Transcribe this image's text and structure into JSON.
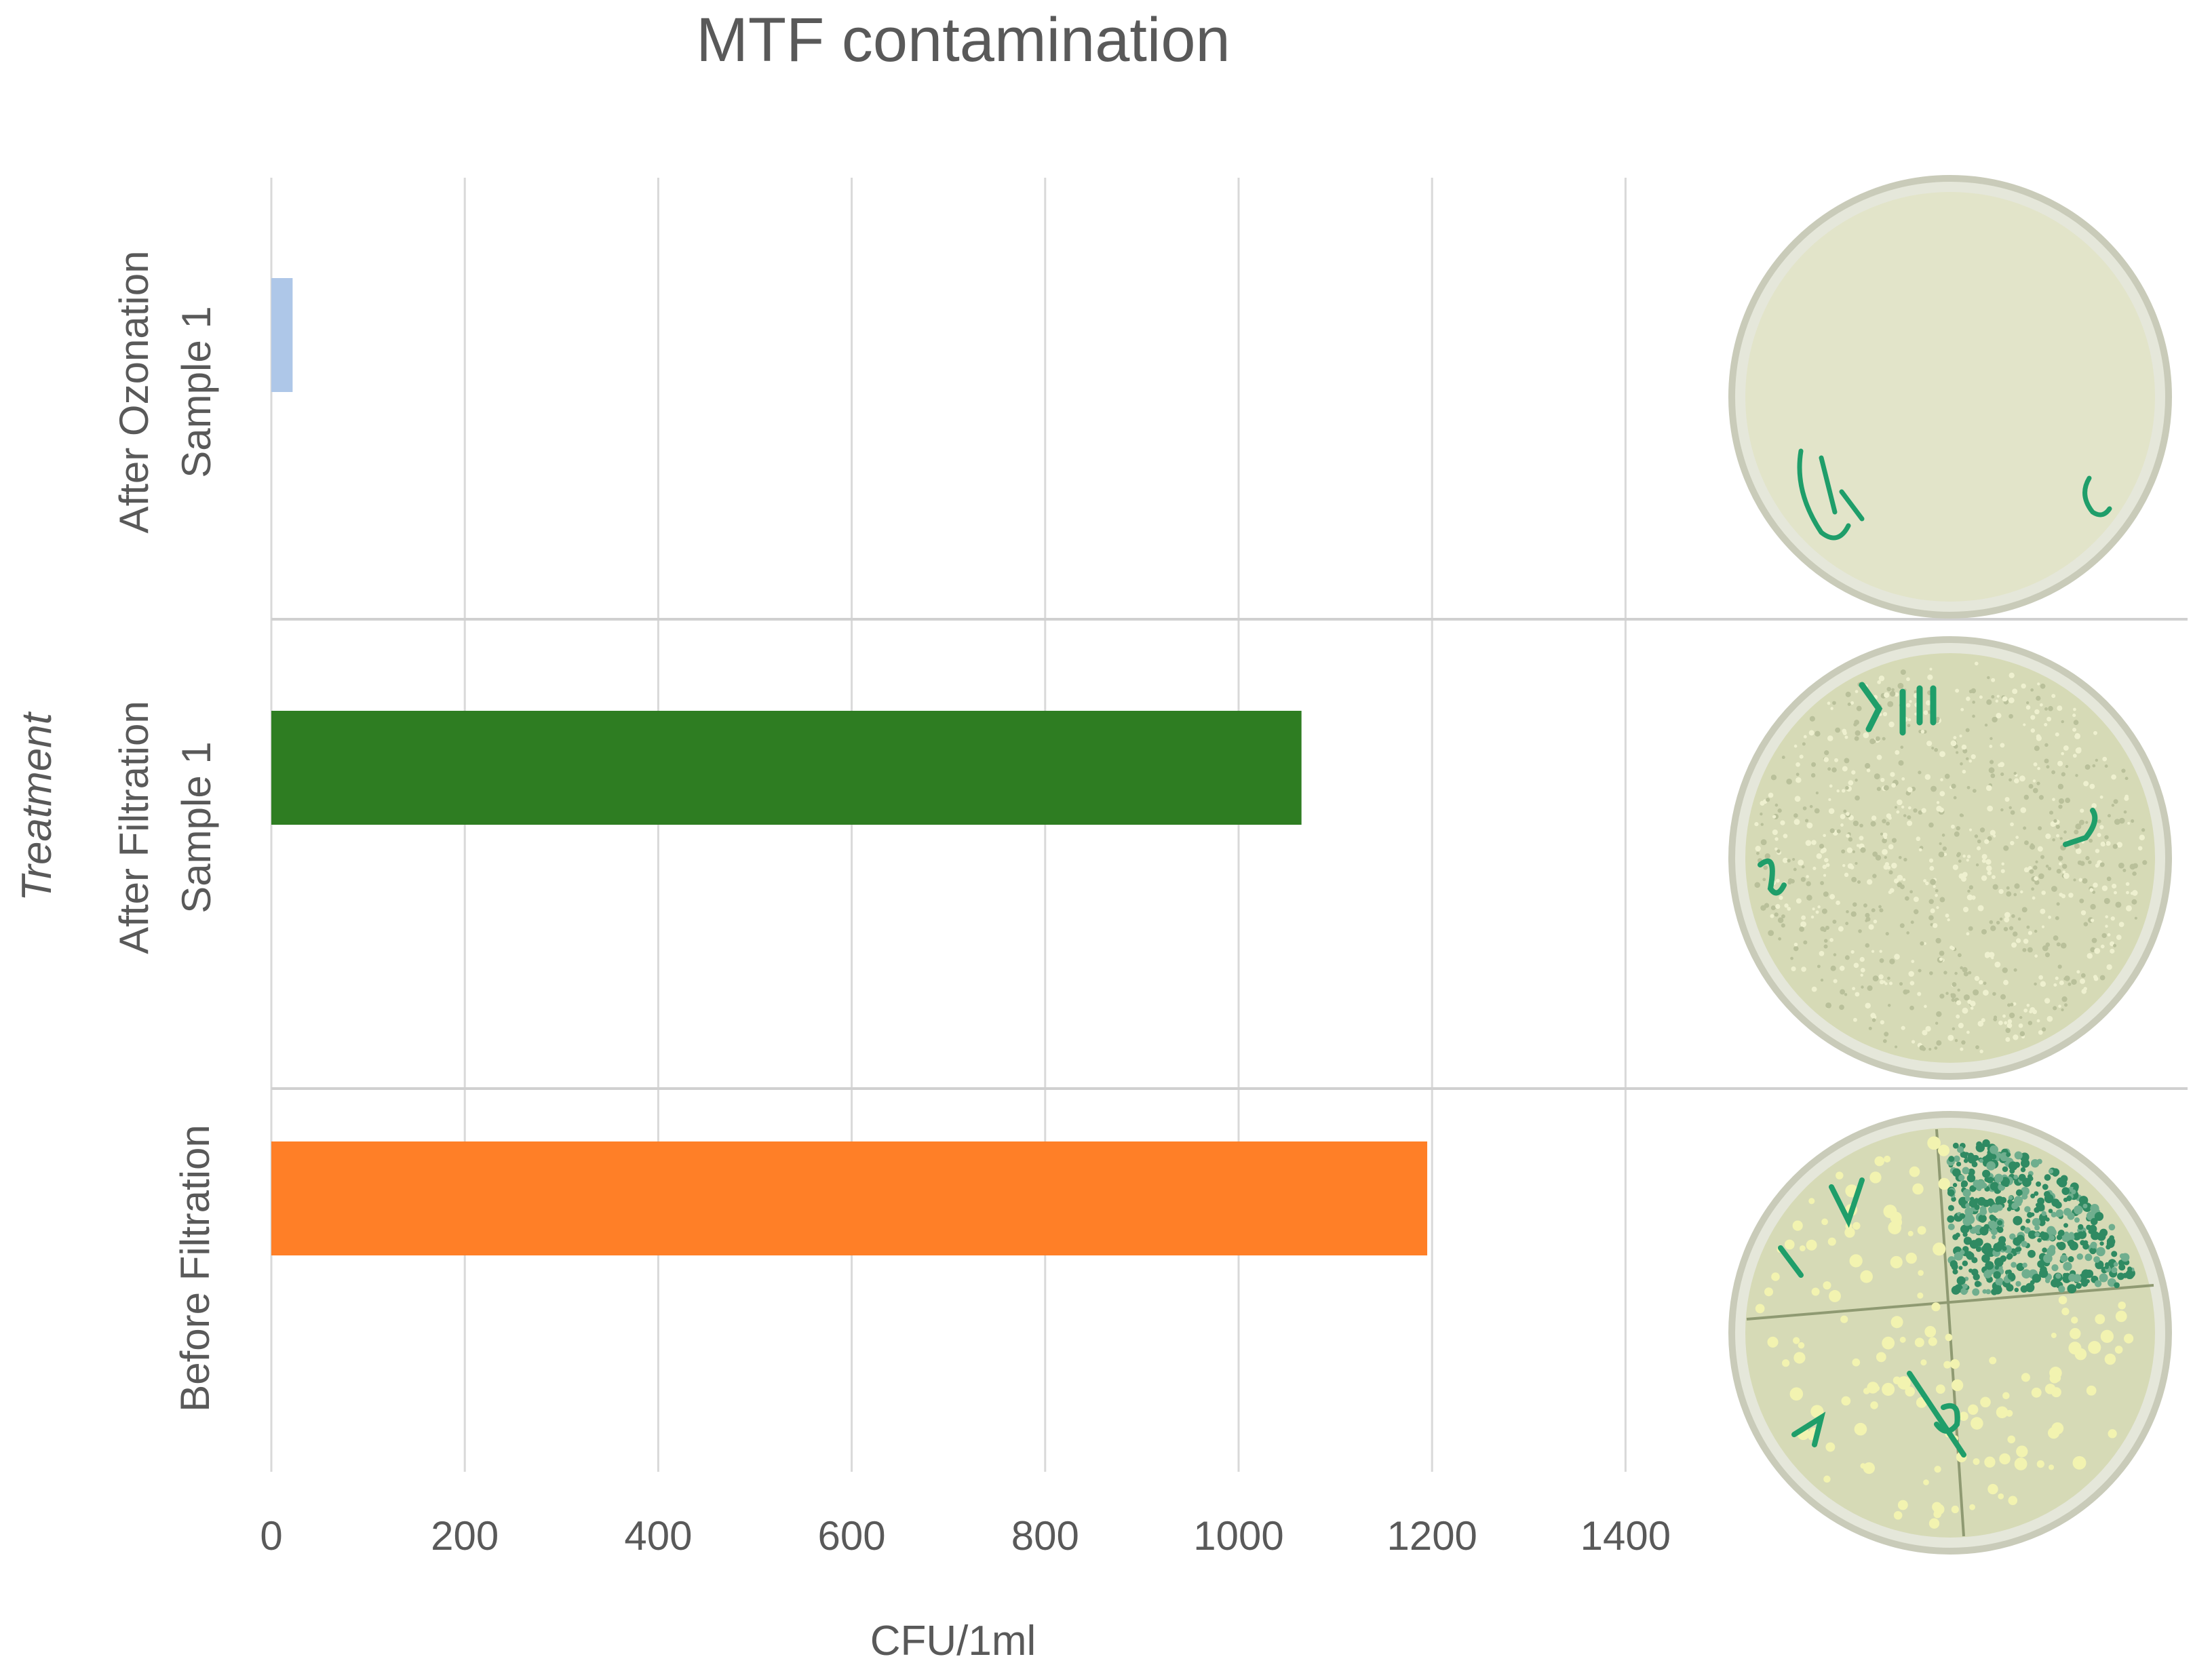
{
  "chart_data": {
    "type": "bar",
    "orientation": "horizontal",
    "title": "MTF contamination",
    "xlabel": "CFU/1ml",
    "ylabel": "Treatment",
    "xlim": [
      0,
      1600
    ],
    "x_ticks": [
      0,
      200,
      400,
      600,
      800,
      1000,
      1200,
      1400
    ],
    "grid": true,
    "categories": [
      {
        "lines": [
          "After Ozonation",
          "Sample 1"
        ],
        "value": 22,
        "color": "#aec7e8"
      },
      {
        "lines": [
          "After Filtration",
          "Sample 1"
        ],
        "value": 1065,
        "color": "#2e7d22"
      },
      {
        "lines": [
          "Before Filtration"
        ],
        "value": 1195,
        "color": "#ff7f27"
      }
    ]
  },
  "colors": {
    "gridline": "#d9d9d9",
    "separator": "#d0d0d0",
    "text": "#595959",
    "title": "#595959",
    "plate_rim": "#c9cbb9",
    "plate_agar": "#d6dab6",
    "ink": "#1f9e6a"
  },
  "plates": [
    {
      "name": "clear-plate",
      "state": "no colonies",
      "annotations": [
        "Puzur",
        "C"
      ]
    },
    {
      "name": "dense-plate",
      "state": "dense colony lawn",
      "annotations": [
        "p 4lll",
        "-n",
        "n"
      ]
    },
    {
      "name": "quadrant-plate",
      "state": "colonies in quadrants",
      "annotations": [
        "1/",
        "Ar",
        "O",
        "e"
      ]
    }
  ]
}
